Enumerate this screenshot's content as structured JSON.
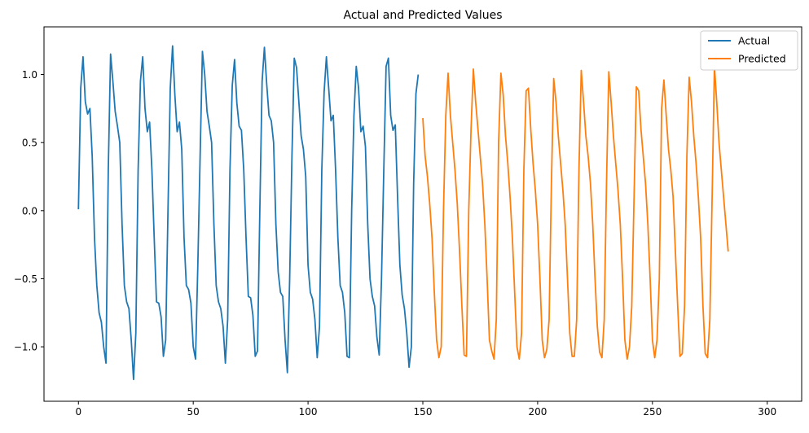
{
  "chart_data": {
    "type": "line",
    "title": "Actual and Predicted Values",
    "xlabel": "",
    "ylabel": "",
    "xlim": [
      -15,
      315
    ],
    "ylim": [
      -1.4,
      1.35
    ],
    "x_ticks": [
      0,
      50,
      100,
      150,
      200,
      250,
      300
    ],
    "x_tick_labels": [
      "0",
      "50",
      "100",
      "150",
      "200",
      "250",
      "300"
    ],
    "y_ticks": [
      -1.0,
      -0.5,
      0.0,
      0.5,
      1.0
    ],
    "y_tick_labels": [
      "−1.0",
      "−0.5",
      "0.0",
      "0.5",
      "1.0"
    ],
    "grid": false,
    "legend_position": "top-right",
    "series": [
      {
        "name": "Actual",
        "color": "#1f77b4",
        "x_start": 0,
        "values": [
          0.01,
          0.9,
          1.13,
          0.8,
          0.71,
          0.75,
          0.4,
          -0.2,
          -0.55,
          -0.75,
          -0.82,
          -1.0,
          -1.12,
          0.3,
          1.15,
          0.95,
          0.73,
          0.62,
          0.5,
          -0.1,
          -0.55,
          -0.67,
          -0.72,
          -0.95,
          -1.24,
          -0.9,
          0.3,
          0.95,
          1.13,
          0.75,
          0.58,
          0.65,
          0.3,
          -0.2,
          -0.67,
          -0.68,
          -0.78,
          -1.07,
          -0.95,
          0.0,
          0.9,
          1.21,
          0.85,
          0.58,
          0.65,
          0.45,
          -0.2,
          -0.55,
          -0.58,
          -0.68,
          -1.0,
          -1.09,
          -0.4,
          0.4,
          1.17,
          1.0,
          0.73,
          0.62,
          0.5,
          -0.1,
          -0.55,
          -0.67,
          -0.72,
          -0.85,
          -1.12,
          -0.8,
          0.3,
          0.92,
          1.11,
          0.79,
          0.62,
          0.59,
          0.3,
          -0.2,
          -0.63,
          -0.64,
          -0.77,
          -1.07,
          -1.03,
          0.0,
          0.95,
          1.2,
          0.93,
          0.7,
          0.66,
          0.5,
          -0.1,
          -0.45,
          -0.6,
          -0.63,
          -0.95,
          -1.19,
          -0.5,
          0.4,
          1.12,
          1.05,
          0.8,
          0.55,
          0.45,
          0.25,
          -0.4,
          -0.6,
          -0.65,
          -0.8,
          -1.08,
          -0.85,
          0.3,
          0.87,
          1.13,
          0.9,
          0.66,
          0.7,
          0.3,
          -0.2,
          -0.55,
          -0.6,
          -0.75,
          -1.07,
          -1.08,
          0.0,
          0.7,
          1.06,
          0.9,
          0.58,
          0.62,
          0.47,
          -0.1,
          -0.5,
          -0.63,
          -0.7,
          -0.93,
          -1.06,
          -0.5,
          0.3,
          1.06,
          1.12,
          0.7,
          0.59,
          0.63,
          0.1,
          -0.4,
          -0.62,
          -0.72,
          -0.9,
          -1.15,
          -1.0,
          0.2,
          0.86,
          1.0
        ]
      },
      {
        "name": "Predicted",
        "color": "#ff7f0e",
        "x_start": 150,
        "values": [
          0.68,
          0.4,
          0.25,
          0.05,
          -0.2,
          -0.6,
          -0.95,
          -1.08,
          -1.0,
          0.0,
          0.7,
          1.01,
          0.7,
          0.5,
          0.3,
          0.05,
          -0.3,
          -0.7,
          -1.06,
          -1.07,
          0.0,
          0.6,
          1.04,
          0.8,
          0.6,
          0.4,
          0.2,
          -0.1,
          -0.5,
          -0.95,
          -1.03,
          -1.09,
          -0.8,
          0.5,
          1.01,
          0.85,
          0.55,
          0.35,
          0.1,
          -0.2,
          -0.6,
          -1.0,
          -1.09,
          -0.9,
          0.3,
          0.88,
          0.9,
          0.6,
          0.35,
          0.15,
          -0.1,
          -0.5,
          -0.95,
          -1.08,
          -1.02,
          -0.8,
          0.2,
          0.97,
          0.8,
          0.55,
          0.35,
          0.15,
          -0.1,
          -0.5,
          -0.9,
          -1.07,
          -1.07,
          -0.8,
          0.3,
          1.03,
          0.8,
          0.55,
          0.4,
          0.2,
          -0.1,
          -0.5,
          -0.85,
          -1.04,
          -1.08,
          -0.8,
          0.2,
          1.02,
          0.8,
          0.55,
          0.35,
          0.15,
          -0.1,
          -0.5,
          -0.95,
          -1.09,
          -1.0,
          -0.7,
          0.1,
          0.91,
          0.88,
          0.6,
          0.4,
          0.2,
          -0.1,
          -0.5,
          -0.95,
          -1.08,
          -0.95,
          -0.5,
          0.75,
          0.96,
          0.7,
          0.45,
          0.3,
          0.1,
          -0.3,
          -0.7,
          -1.07,
          -1.05,
          -0.7,
          0.4,
          0.98,
          0.8,
          0.55,
          0.35,
          0.1,
          -0.2,
          -0.7,
          -1.05,
          -1.08,
          -0.8,
          0.1,
          1.06,
          0.8,
          0.5,
          0.3,
          0.1,
          -0.1,
          -0.3
        ]
      }
    ]
  }
}
